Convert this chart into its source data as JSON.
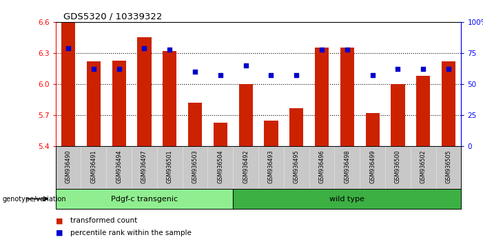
{
  "title": "GDS5320 / 10339322",
  "samples": [
    "GSM936490",
    "GSM936491",
    "GSM936494",
    "GSM936497",
    "GSM936501",
    "GSM936503",
    "GSM936504",
    "GSM936492",
    "GSM936493",
    "GSM936495",
    "GSM936496",
    "GSM936498",
    "GSM936499",
    "GSM936500",
    "GSM936502",
    "GSM936505"
  ],
  "bar_values": [
    6.59,
    6.22,
    6.23,
    6.45,
    6.32,
    5.82,
    5.63,
    6.0,
    5.65,
    5.77,
    6.35,
    6.35,
    5.72,
    6.0,
    6.08,
    6.22
  ],
  "percentile_values": [
    79,
    62,
    62,
    79,
    78,
    60,
    57,
    65,
    57,
    57,
    78,
    78,
    57,
    62,
    62,
    62
  ],
  "groups": [
    {
      "label": "Pdgf-c transgenic",
      "color": "#90EE90",
      "start": 0,
      "end": 7
    },
    {
      "label": "wild type",
      "color": "#3CB043",
      "start": 7,
      "end": 16
    }
  ],
  "ylim_left": [
    5.4,
    6.6
  ],
  "ylim_right": [
    0,
    100
  ],
  "yticks_left": [
    5.4,
    5.7,
    6.0,
    6.3,
    6.6
  ],
  "yticks_right": [
    0,
    25,
    50,
    75,
    100
  ],
  "bar_color": "#CC2200",
  "scatter_color": "#0000CC",
  "background_color": "#FFFFFF",
  "grid_color": "#000000",
  "legend_items": [
    "transformed count",
    "percentile rank within the sample"
  ],
  "genotype_label": "genotype/variation"
}
